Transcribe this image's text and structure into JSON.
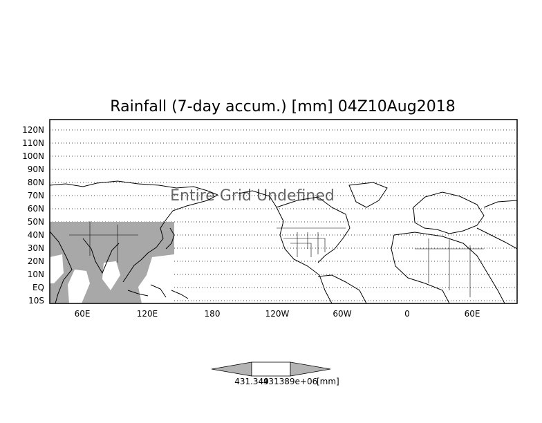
{
  "title": "Rainfall (7-day accum.) [mm] 04Z10Aug2018",
  "overlay_text": "Entire Grid Undefined",
  "lat_labels": [
    "120N",
    "110N",
    "100N",
    "90N",
    "80N",
    "70N",
    "60N",
    "50N",
    "40N",
    "30N",
    "20N",
    "10N",
    "EQ",
    "10S"
  ],
  "lon_labels": [
    "60E",
    "120E",
    "180",
    "120W",
    "60W",
    "0",
    "60E"
  ],
  "colorbar": {
    "left_value": "431.349",
    "right_value": "431389e+06",
    "unit": "[mm]",
    "fill": "#b4b4b4"
  },
  "colors": {
    "frame": "#000000",
    "shaded_region": "#a8a8a8",
    "land_outline": "#000000",
    "grid": "#000000"
  }
}
